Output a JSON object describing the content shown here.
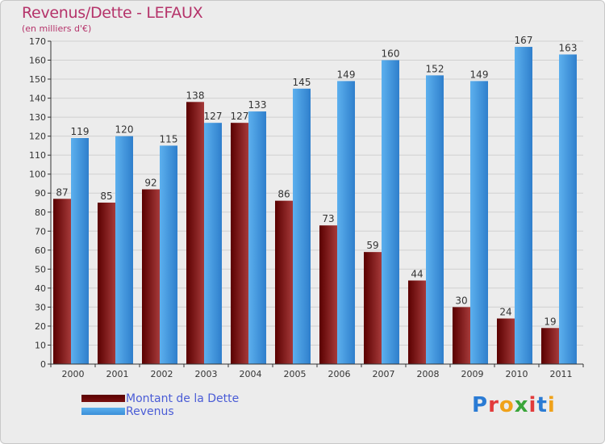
{
  "title": "Revenus/Dette - LEFAUX",
  "subtitle": "(en milliers d'€)",
  "brand": {
    "text": "Proxiti",
    "letter_colors": [
      "#2a7bd4",
      "#e23b3b",
      "#f0a21a",
      "#3aa53a",
      "#e23b3b",
      "#2a7bd4",
      "#f0a21a"
    ]
  },
  "colors": {
    "dette_dark": "#5a0000",
    "dette_light": "#a63a3a",
    "revenus_dark": "#2f7fcc",
    "revenus_light": "#5cb0ee",
    "axis": "#333333",
    "grid": "#d0d0d0"
  },
  "chart_data": {
    "type": "bar",
    "title": "Revenus/Dette - LEFAUX",
    "subtitle": "(en milliers d'€)",
    "categories": [
      "2000",
      "2001",
      "2002",
      "2003",
      "2004",
      "2005",
      "2006",
      "2007",
      "2008",
      "2009",
      "2010",
      "2011"
    ],
    "series": [
      {
        "name": "Montant de la Dette",
        "values": [
          87,
          85,
          92,
          138,
          127,
          86,
          73,
          59,
          44,
          30,
          24,
          19
        ]
      },
      {
        "name": "Revenus",
        "values": [
          119,
          120,
          115,
          127,
          133,
          145,
          149,
          160,
          152,
          149,
          167,
          163
        ]
      }
    ],
    "ylim": [
      0,
      170
    ],
    "yticks": [
      0,
      10,
      20,
      30,
      40,
      50,
      60,
      70,
      80,
      90,
      100,
      110,
      120,
      130,
      140,
      150,
      160,
      170
    ],
    "grid": true,
    "legend": "bottom-left"
  }
}
